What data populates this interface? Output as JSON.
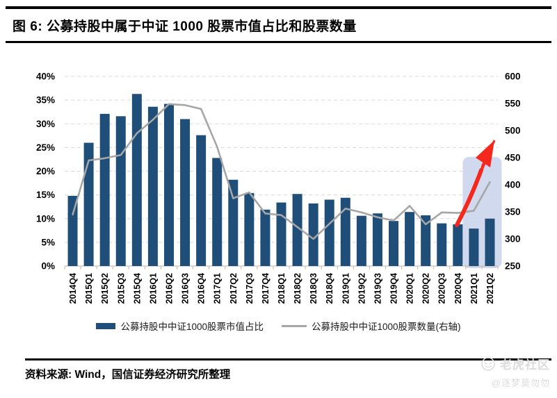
{
  "page": {
    "title": "图 6: 公募持股中属于中证 1000 股票市值占比和股票数量"
  },
  "source_note": "资料来源: Wind，国信证券经济研究所整理",
  "watermark": {
    "brand": "老虎社区",
    "handle": "@逐梦莫勿勿",
    "icon": "tiger-logo-icon"
  },
  "colors": {
    "bar": "#1F4E79",
    "line": "#A6A6A6",
    "grid": "#D8D8D8",
    "axis": "#BFBFBF",
    "x_tick": "#D8A778",
    "highlight": "#CCD5EC",
    "arrow": "#F5281D",
    "text": "#000000",
    "watermark": "#DCDCDC"
  },
  "legend": {
    "items": [
      {
        "label": "公募持股中中证1000股票市值占比",
        "marker": "bar-swatch"
      },
      {
        "label": "公募持股中中证1000股票数量(右轴)",
        "marker": "line-swatch"
      }
    ]
  },
  "chart_data": {
    "type": "combo-bar-line",
    "title": "公募持股中属于中证1000股票市值占比和股票数量",
    "categories": [
      "2014Q4",
      "2015Q1",
      "2015Q2",
      "2015Q3",
      "2015Q4",
      "2016Q1",
      "2016Q2",
      "2016Q3",
      "2016Q4",
      "2017Q1",
      "2017Q2",
      "2017Q3",
      "2017Q4",
      "2018Q1",
      "2018Q2",
      "2018Q3",
      "2018Q4",
      "2019Q1",
      "2019Q2",
      "2019Q3",
      "2019Q4",
      "2020Q1",
      "2020Q2",
      "2020Q3",
      "2020Q4",
      "2021Q1",
      "2021Q2"
    ],
    "series": [
      {
        "name": "公募持股中中证1000股票市值占比",
        "kind": "bar",
        "axis": "left",
        "unit": "%",
        "values": [
          14.8,
          26.0,
          32.1,
          31.6,
          36.3,
          33.6,
          34.2,
          31.0,
          27.6,
          22.8,
          18.2,
          15.4,
          11.9,
          13.4,
          15.2,
          13.2,
          14.0,
          14.4,
          10.6,
          11.1,
          9.5,
          11.4,
          10.7,
          9.0,
          8.8,
          7.9,
          10.0
        ]
      },
      {
        "name": "公募持股中中证1000股票数量(右轴)",
        "kind": "line",
        "axis": "right",
        "values": [
          345,
          445,
          449,
          455,
          495,
          520,
          549,
          547,
          540,
          470,
          375,
          386,
          347,
          344,
          322,
          300,
          328,
          356,
          349,
          340,
          334,
          361,
          327,
          349,
          348,
          352,
          405
        ]
      }
    ],
    "left_axis": {
      "min": 0,
      "max": 40,
      "step": 5,
      "tick_labels": [
        "0%",
        "5%",
        "10%",
        "15%",
        "20%",
        "25%",
        "30%",
        "35%",
        "40%"
      ]
    },
    "right_axis": {
      "min": 250,
      "max": 600,
      "step": 50,
      "tick_labels": [
        "250",
        "300",
        "350",
        "400",
        "450",
        "500",
        "550",
        "600"
      ]
    },
    "grid": "horizontal-dashed",
    "legend_position": "bottom",
    "annotations": [
      {
        "type": "highlight-box",
        "categories": [
          "2021Q1",
          "2021Q2"
        ]
      },
      {
        "type": "arrow",
        "direction": "up-right",
        "color": "#F5281D"
      }
    ]
  }
}
